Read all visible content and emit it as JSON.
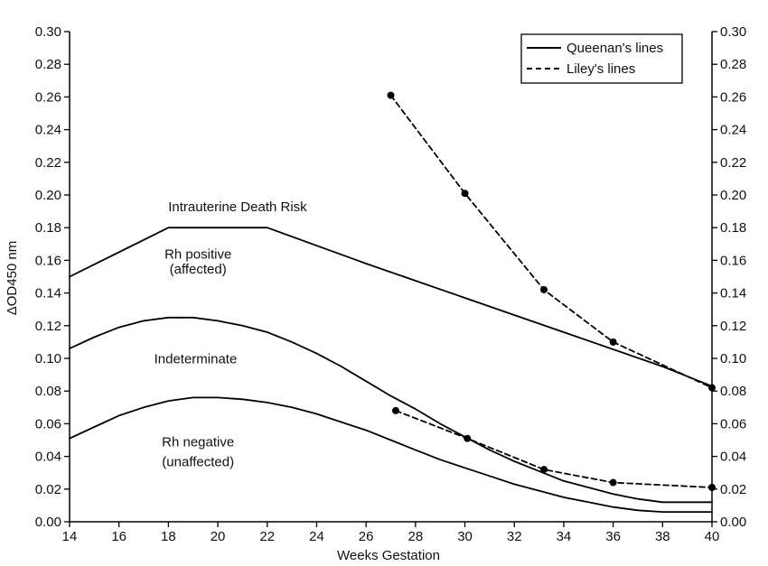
{
  "chart_data": {
    "type": "line",
    "xlabel": "Weeks Gestation",
    "ylabel": "ΔOD450 nm",
    "xlim": [
      14,
      40
    ],
    "ylim": [
      0,
      0.3
    ],
    "x_ticks": [
      "14",
      "16",
      "18",
      "20",
      "22",
      "24",
      "26",
      "28",
      "30",
      "32",
      "34",
      "36",
      "38",
      "40"
    ],
    "y_ticks": [
      "0.00",
      "0.02",
      "0.04",
      "0.06",
      "0.08",
      "0.10",
      "0.12",
      "0.14",
      "0.16",
      "0.18",
      "0.20",
      "0.22",
      "0.24",
      "0.26",
      "0.28",
      "0.30"
    ],
    "right_axis": true,
    "grid": false,
    "legend_position": "top-right",
    "legend": [
      {
        "label": "Queenan's lines",
        "style": "solid"
      },
      {
        "label": "Liley's lines",
        "style": "dashed"
      }
    ],
    "series": [
      {
        "group": "Queenan's lines",
        "style": "solid",
        "points": [
          [
            14,
            0.15
          ],
          [
            18,
            0.18
          ],
          [
            22,
            0.18
          ],
          [
            26,
            0.158
          ],
          [
            30,
            0.137
          ],
          [
            34,
            0.116
          ],
          [
            38,
            0.095
          ],
          [
            40,
            0.083
          ]
        ]
      },
      {
        "group": "Queenan's lines",
        "style": "solid",
        "points": [
          [
            14,
            0.106
          ],
          [
            15,
            0.113
          ],
          [
            16,
            0.119
          ],
          [
            17,
            0.123
          ],
          [
            18,
            0.125
          ],
          [
            19,
            0.125
          ],
          [
            20,
            0.123
          ],
          [
            21,
            0.12
          ],
          [
            22,
            0.116
          ],
          [
            23,
            0.11
          ],
          [
            24,
            0.103
          ],
          [
            25,
            0.095
          ],
          [
            26,
            0.086
          ],
          [
            27,
            0.077
          ],
          [
            28,
            0.069
          ],
          [
            29,
            0.06
          ],
          [
            30,
            0.052
          ],
          [
            31,
            0.044
          ],
          [
            32,
            0.037
          ],
          [
            33,
            0.031
          ],
          [
            34,
            0.025
          ],
          [
            35,
            0.021
          ],
          [
            36,
            0.017
          ],
          [
            37,
            0.014
          ],
          [
            38,
            0.012
          ],
          [
            39,
            0.012
          ],
          [
            40,
            0.012
          ]
        ]
      },
      {
        "group": "Queenan's lines",
        "style": "solid",
        "points": [
          [
            14,
            0.051
          ],
          [
            15,
            0.058
          ],
          [
            16,
            0.065
          ],
          [
            17,
            0.07
          ],
          [
            18,
            0.074
          ],
          [
            19,
            0.076
          ],
          [
            20,
            0.076
          ],
          [
            21,
            0.075
          ],
          [
            22,
            0.073
          ],
          [
            23,
            0.07
          ],
          [
            24,
            0.066
          ],
          [
            25,
            0.061
          ],
          [
            26,
            0.056
          ],
          [
            27,
            0.05
          ],
          [
            28,
            0.044
          ],
          [
            29,
            0.038
          ],
          [
            30,
            0.033
          ],
          [
            31,
            0.028
          ],
          [
            32,
            0.023
          ],
          [
            33,
            0.019
          ],
          [
            34,
            0.015
          ],
          [
            35,
            0.012
          ],
          [
            36,
            0.009
          ],
          [
            37,
            0.007
          ],
          [
            38,
            0.006
          ],
          [
            39,
            0.006
          ],
          [
            40,
            0.006
          ]
        ]
      },
      {
        "group": "Liley's lines",
        "style": "dashed",
        "markers": true,
        "points": [
          [
            27,
            0.261
          ],
          [
            30,
            0.201
          ],
          [
            33.2,
            0.142
          ],
          [
            36,
            0.11
          ],
          [
            40,
            0.082
          ]
        ]
      },
      {
        "group": "Liley's lines",
        "style": "dashed",
        "markers": true,
        "points": [
          [
            27.2,
            0.068
          ],
          [
            30.1,
            0.051
          ],
          [
            33.2,
            0.032
          ],
          [
            36,
            0.024
          ],
          [
            40,
            0.021
          ]
        ]
      }
    ],
    "annotations": [
      {
        "text": "Intrauterine Death Risk",
        "x": 20.8,
        "y": 0.19
      },
      {
        "text": "Rh positive",
        "x": 19.2,
        "y": 0.161
      },
      {
        "text": "(affected)",
        "x": 19.2,
        "y": 0.152
      },
      {
        "text": "Indeterminate",
        "x": 19.1,
        "y": 0.097
      },
      {
        "text": "Rh negative",
        "x": 19.2,
        "y": 0.046
      },
      {
        "text": "(unaffected)",
        "x": 19.2,
        "y": 0.034
      }
    ]
  }
}
